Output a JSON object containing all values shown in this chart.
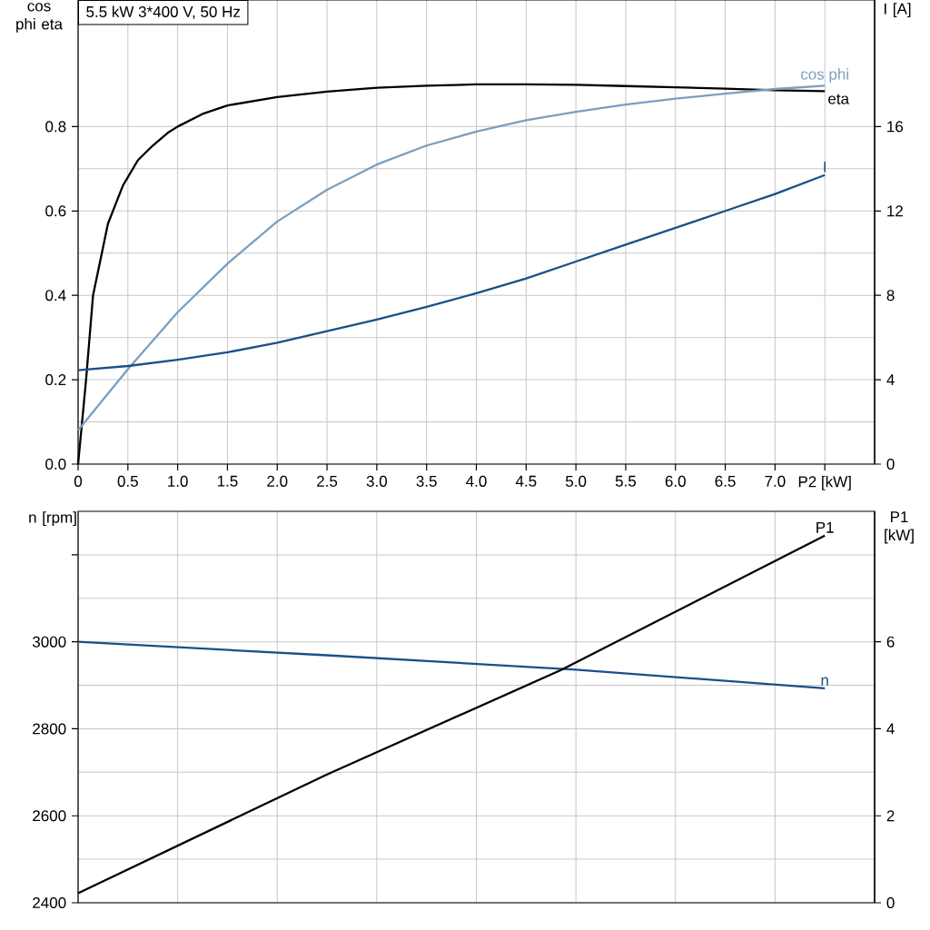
{
  "chart_data": [
    {
      "type": "line",
      "title": "5.5 kW   3*400 V, 50 Hz",
      "ylabel": "cos phi eta",
      "y2label": "I [A]",
      "grid": true,
      "legend": false,
      "xlim": [
        0,
        8
      ],
      "xticks": [
        0,
        0.5,
        {
          "value": 1,
          "label": "1.0"
        },
        1.5,
        {
          "value": 2,
          "label": "2.0"
        },
        2.5,
        {
          "value": 3,
          "label": "3.0"
        },
        3.5,
        {
          "value": 4,
          "label": "4.0"
        },
        4.5,
        {
          "value": 5,
          "label": "5.0"
        },
        5.5,
        {
          "value": 6,
          "label": "6.0"
        },
        6.5,
        {
          "value": 7,
          "label": "7.0"
        },
        {
          "value": 7.5,
          "label": "P2 [kW]"
        }
      ],
      "ylim": [
        0,
        1.1
      ],
      "yticks": [
        {
          "value": 0,
          "label": "0.0"
        },
        0.2,
        0.4,
        0.6,
        0.8
      ],
      "y2lim": [
        0,
        22
      ],
      "y2ticks": [
        0,
        4,
        8,
        12,
        16
      ],
      "series": [
        {
          "name": "eta",
          "color": "#000000",
          "x": [
            0,
            0.08,
            0.15,
            0.3,
            0.45,
            0.6,
            0.75,
            0.9,
            1.0,
            1.25,
            1.5,
            2.0,
            2.5,
            3.0,
            3.5,
            4.0,
            4.5,
            5.0,
            5.5,
            6.0,
            6.5,
            7.0,
            7.5
          ],
          "values": [
            0,
            0.2,
            0.4,
            0.57,
            0.66,
            0.72,
            0.755,
            0.785,
            0.8,
            0.83,
            0.85,
            0.87,
            0.883,
            0.892,
            0.897,
            0.9,
            0.9,
            0.899,
            0.896,
            0.893,
            0.89,
            0.886,
            0.884
          ]
        },
        {
          "name": "cos phi",
          "color": "#7a9fc0",
          "x": [
            0,
            0.5,
            1.0,
            1.5,
            2.0,
            2.5,
            3.0,
            3.5,
            4.0,
            4.5,
            5.0,
            5.5,
            6.0,
            6.5,
            7.0,
            7.5
          ],
          "values": [
            0.08,
            0.225,
            0.36,
            0.475,
            0.575,
            0.65,
            0.71,
            0.755,
            0.788,
            0.815,
            0.835,
            0.852,
            0.866,
            0.878,
            0.889,
            0.897
          ]
        },
        {
          "name": "I",
          "color": "#1b4f88",
          "axis": "y2",
          "x": [
            0,
            0.5,
            1.0,
            1.5,
            2.0,
            2.5,
            3.0,
            3.5,
            4.0,
            4.5,
            5.0,
            5.5,
            6.0,
            6.5,
            7.0,
            7.5
          ],
          "values": [
            4.45,
            4.65,
            4.95,
            5.3,
            5.75,
            6.3,
            6.85,
            7.45,
            8.1,
            8.8,
            9.6,
            10.4,
            11.2,
            12.0,
            12.8,
            13.7
          ]
        }
      ]
    },
    {
      "type": "line",
      "ylabel": "n [rpm]",
      "y2label": "P1 [kW]",
      "grid": true,
      "legend": false,
      "tick_labels": "y",
      "xlim": [
        0,
        8
      ],
      "xticks": [
        0,
        1,
        2,
        3,
        4,
        5,
        6,
        7,
        8
      ],
      "ylim": [
        2400,
        3300
      ],
      "yticks": [
        2400,
        2600,
        2800,
        3000,
        {
          "value": 3200,
          "label": null
        }
      ],
      "y2lim": [
        0,
        9
      ],
      "y2ticks": [
        0,
        2,
        4,
        6
      ],
      "series": [
        {
          "name": "n",
          "color": "#1b4f88",
          "x": [
            0,
            2.5,
            5.0,
            7.5
          ],
          "values": [
            3000,
            2969,
            2936,
            2893
          ]
        },
        {
          "name": "P1",
          "color": "#000000",
          "axis": "y2",
          "x": [
            0,
            2.5,
            4.85,
            7.5
          ],
          "values": [
            0.22,
            2.95,
            5.35,
            8.44
          ]
        }
      ]
    }
  ]
}
